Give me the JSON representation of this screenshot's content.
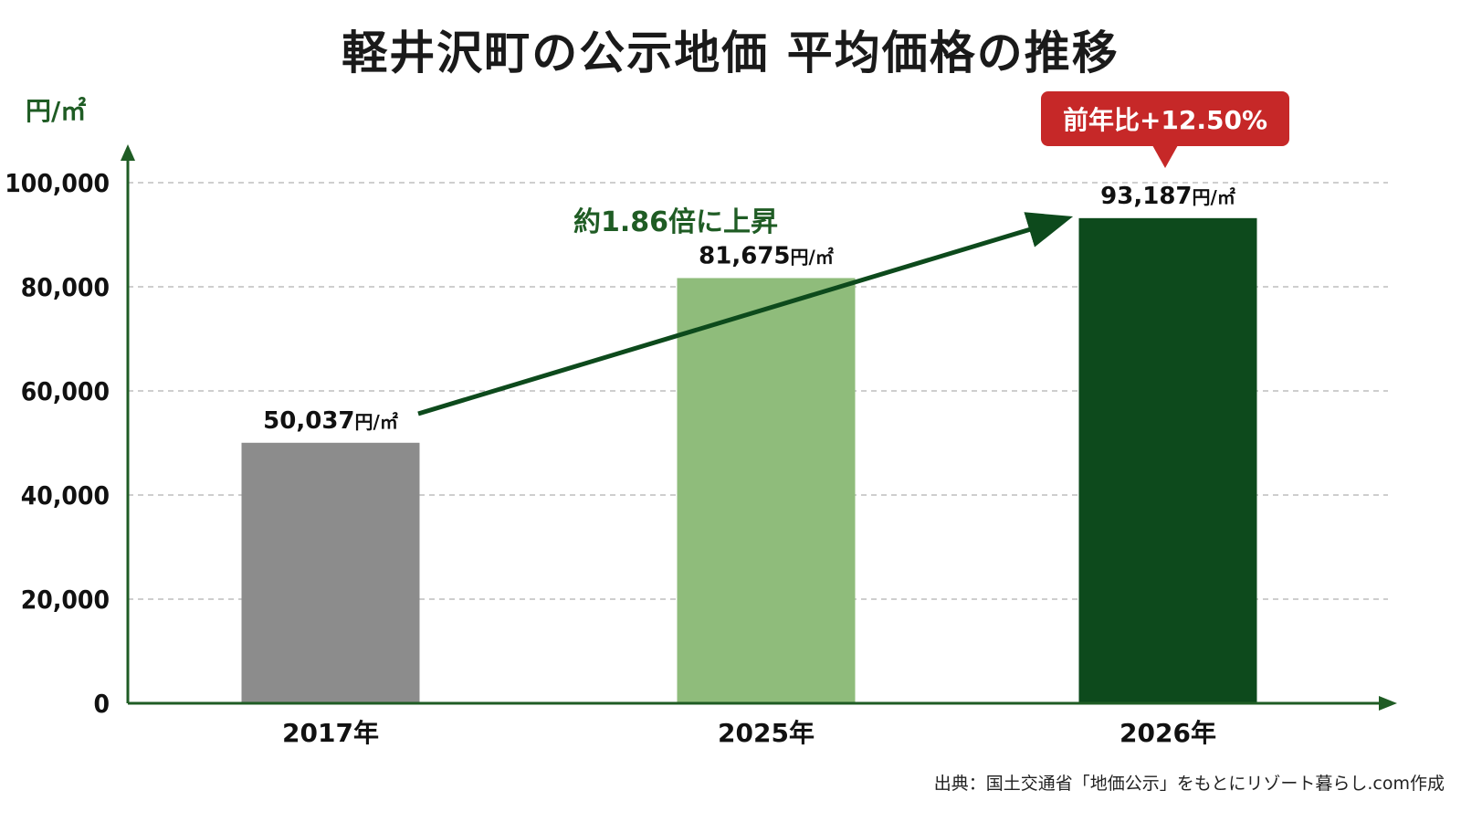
{
  "chart_data": {
    "type": "bar",
    "title": "軽井沢町の公示地価 平均価格の推移",
    "ylabel": "円/㎡",
    "categories": [
      "2017年",
      "2025年",
      "2026年"
    ],
    "values": [
      50037,
      81675,
      93187
    ],
    "value_labels": [
      "50,037",
      "81,675",
      "93,187"
    ],
    "value_unit": "円/㎡",
    "bar_colors": [
      "#8c8c8c",
      "#8fbc7b",
      "#0d4a1c"
    ],
    "ylim": [
      0,
      100000
    ],
    "yticks": [
      0,
      20000,
      40000,
      60000,
      80000,
      100000
    ],
    "ytick_labels": [
      "0",
      "20,000",
      "40,000",
      "60,000",
      "80,000",
      "100,000"
    ],
    "grid": true,
    "annotations": {
      "growth": "約1.86倍に上昇",
      "callout": "前年比+12.50%"
    }
  },
  "source": "出典：国土交通省「地価公示」をもとにリゾート暮らし.com作成",
  "colors": {
    "axis": "#1f5c24",
    "grid": "#bdbdbd",
    "arrow": "#0d4a1c",
    "callout_bg": "#c62828"
  }
}
